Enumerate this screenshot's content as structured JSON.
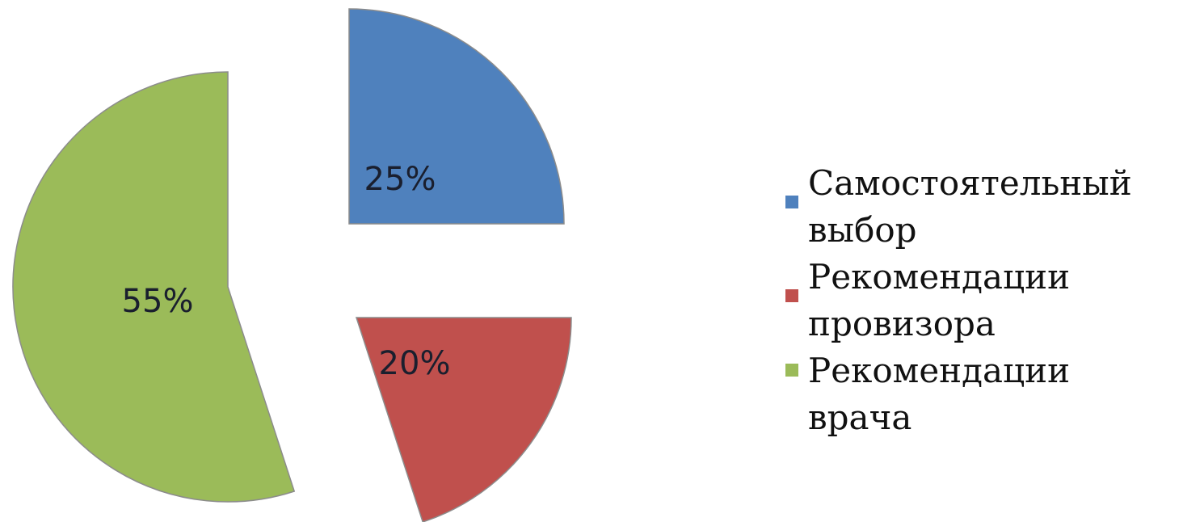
{
  "chart_data": {
    "type": "pie",
    "exploded": true,
    "slices": [
      {
        "label": "Самостоятельный выбор",
        "value": 25,
        "data_label": "25%",
        "color": "#4f81bd"
      },
      {
        "label": "Рекомендации провизора",
        "value": 20,
        "data_label": "20%",
        "color": "#c0504d"
      },
      {
        "label": "Рекомендации врача",
        "value": 55,
        "data_label": "55%",
        "color": "#9bbb59"
      }
    ],
    "legend_position": "right"
  },
  "legend": {
    "items": [
      {
        "label": "Самостоятельный выбор",
        "color": "#4f81bd"
      },
      {
        "label": "Рекомендации провизора",
        "color": "#c0504d"
      },
      {
        "label": "Рекомендации врача",
        "color": "#9bbb59"
      }
    ]
  }
}
